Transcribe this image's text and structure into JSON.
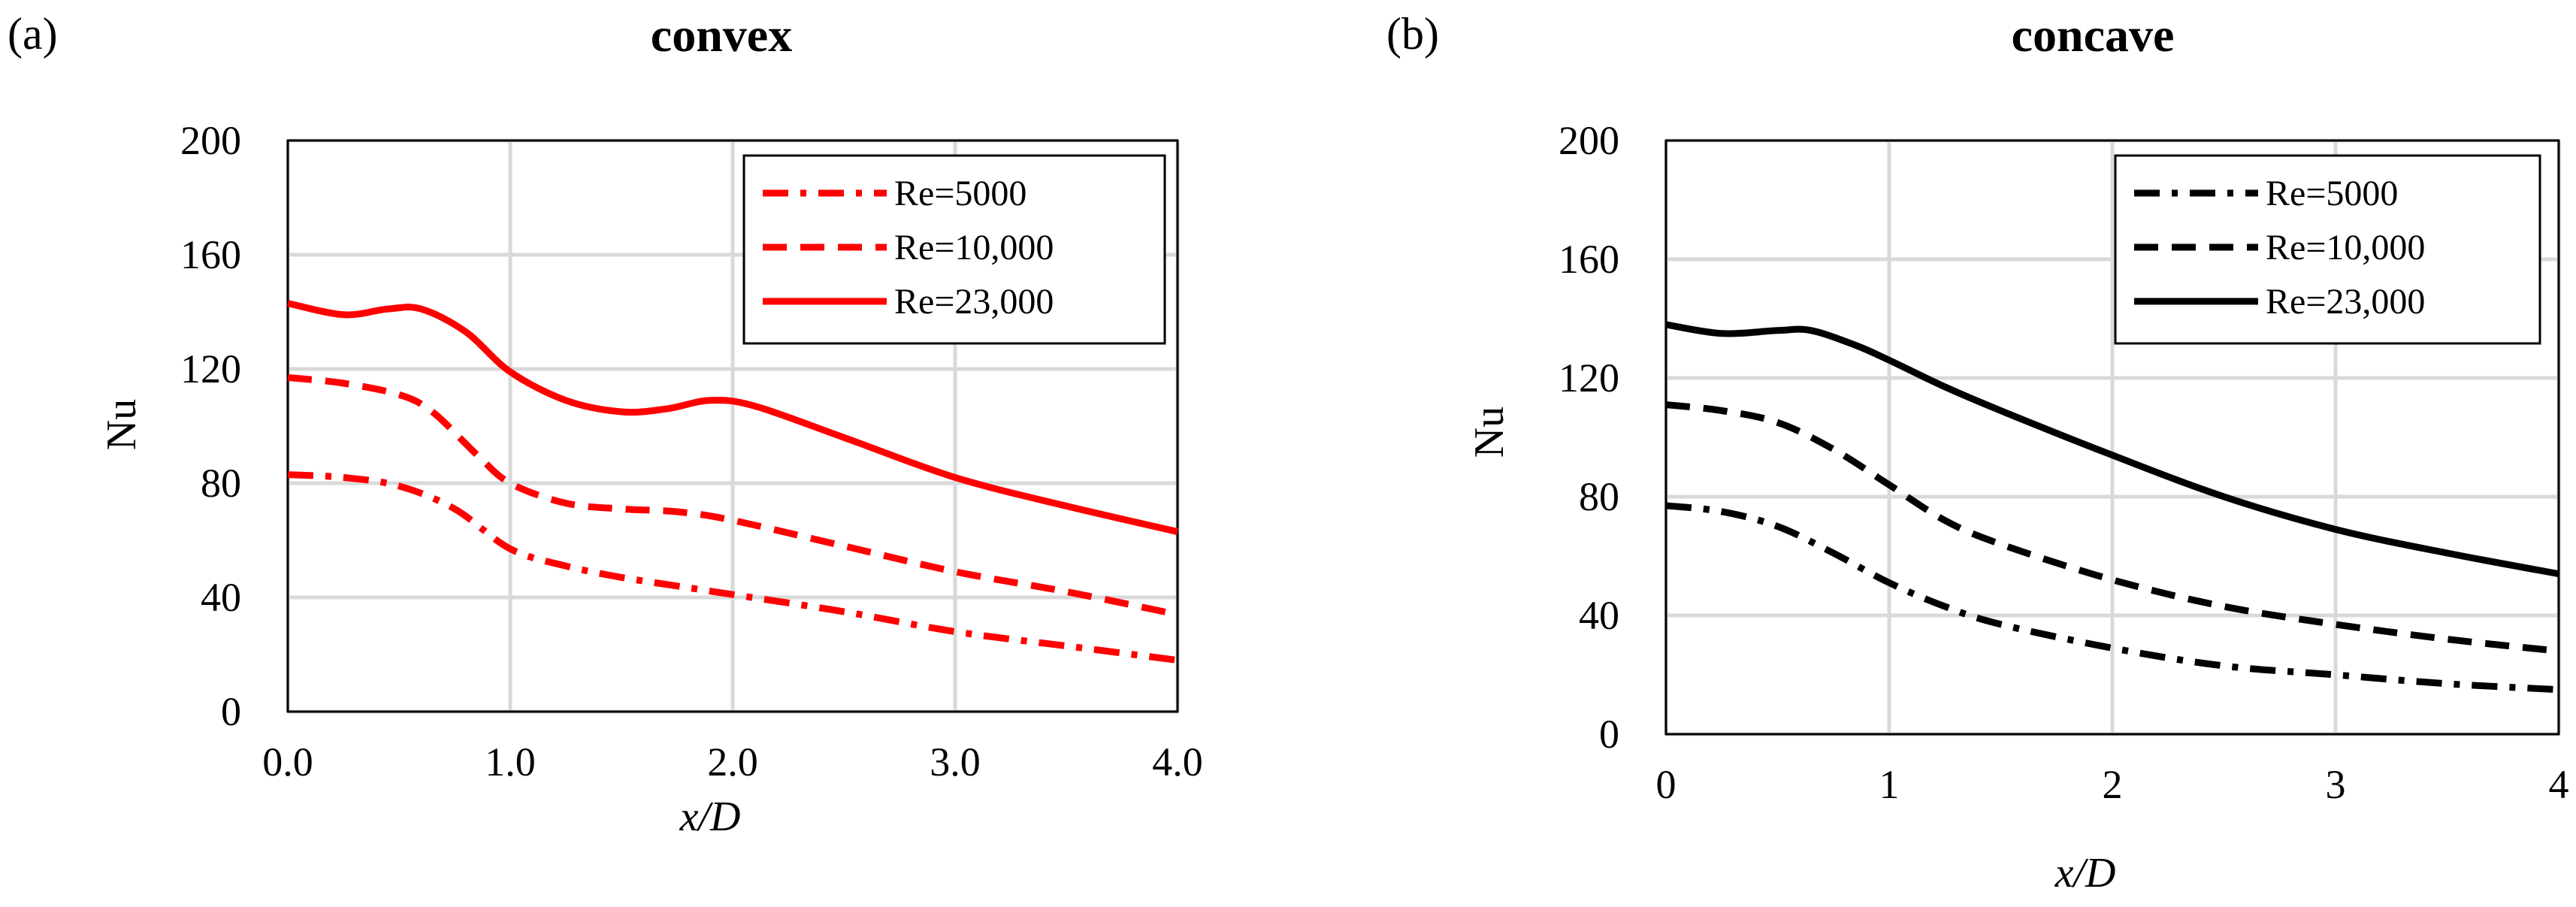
{
  "chart_data": [
    {
      "type": "line",
      "panel_label": "(a)",
      "title": "convex",
      "xlabel": "x/D",
      "ylabel": "Nu",
      "xlim": [
        0,
        4
      ],
      "ylim": [
        0,
        200
      ],
      "xticks": [
        "0.0",
        "1.0",
        "2.0",
        "3.0",
        "4.0"
      ],
      "yticks": [
        "0",
        "40",
        "80",
        "120",
        "160",
        "200"
      ],
      "grid": true,
      "legend_position": "top-right",
      "line_color": "#ff0000",
      "series": [
        {
          "name": "Re=5000",
          "style": "dash-dot",
          "x": [
            0,
            0.25,
            0.5,
            0.75,
            1.0,
            1.25,
            1.5,
            1.75,
            2.0,
            2.5,
            3.0,
            3.5,
            4.0
          ],
          "y": [
            83,
            82,
            79,
            71,
            57,
            51,
            47,
            44,
            41,
            35,
            28,
            23,
            18
          ]
        },
        {
          "name": "Re=10,000",
          "style": "dash",
          "x": [
            0,
            0.25,
            0.5,
            0.65,
            0.85,
            1.0,
            1.25,
            1.5,
            1.75,
            2.0,
            2.5,
            3.0,
            3.5,
            4.0
          ],
          "y": [
            117,
            115,
            111,
            105,
            90,
            80,
            73,
            71,
            70,
            67,
            58,
            49,
            42,
            34
          ]
        },
        {
          "name": "Re=23,000",
          "style": "solid",
          "x": [
            0,
            0.25,
            0.45,
            0.6,
            0.8,
            1.0,
            1.25,
            1.5,
            1.7,
            1.9,
            2.1,
            2.5,
            3.0,
            3.5,
            4.0
          ],
          "y": [
            143,
            139,
            141,
            141,
            133,
            119,
            109,
            105,
            106,
            109,
            107,
            96,
            82,
            72,
            63
          ]
        }
      ]
    },
    {
      "type": "line",
      "panel_label": "(b)",
      "title": "concave",
      "xlabel": "x/D",
      "ylabel": "Nu",
      "xlim": [
        0,
        4
      ],
      "ylim": [
        0,
        200
      ],
      "xticks": [
        "0",
        "1",
        "2",
        "3",
        "4"
      ],
      "yticks": [
        "0",
        "40",
        "80",
        "120",
        "160",
        "200"
      ],
      "grid": true,
      "legend_position": "top-right",
      "line_color": "#000000",
      "series": [
        {
          "name": "Re=5000",
          "style": "dash-dot",
          "x": [
            0,
            0.25,
            0.5,
            0.75,
            1.0,
            1.25,
            1.5,
            2.0,
            2.5,
            3.0,
            3.5,
            4.0
          ],
          "y": [
            77,
            75,
            70,
            61,
            51,
            43,
            37,
            29,
            23,
            20,
            17,
            15
          ]
        },
        {
          "name": "Re=10,000",
          "style": "dash",
          "x": [
            0,
            0.25,
            0.5,
            0.75,
            1.0,
            1.25,
            1.5,
            2.0,
            2.5,
            3.0,
            3.5,
            4.0
          ],
          "y": [
            111,
            109,
            105,
            96,
            84,
            72,
            64,
            52,
            43,
            37,
            32,
            28
          ]
        },
        {
          "name": "Re=23,000",
          "style": "solid",
          "x": [
            0,
            0.25,
            0.5,
            0.65,
            0.85,
            1.0,
            1.25,
            1.5,
            2.0,
            2.5,
            3.0,
            3.5,
            4.0
          ],
          "y": [
            138,
            135,
            136,
            136,
            131,
            126,
            117,
            109,
            94,
            80,
            69,
            61,
            54
          ]
        }
      ]
    }
  ]
}
